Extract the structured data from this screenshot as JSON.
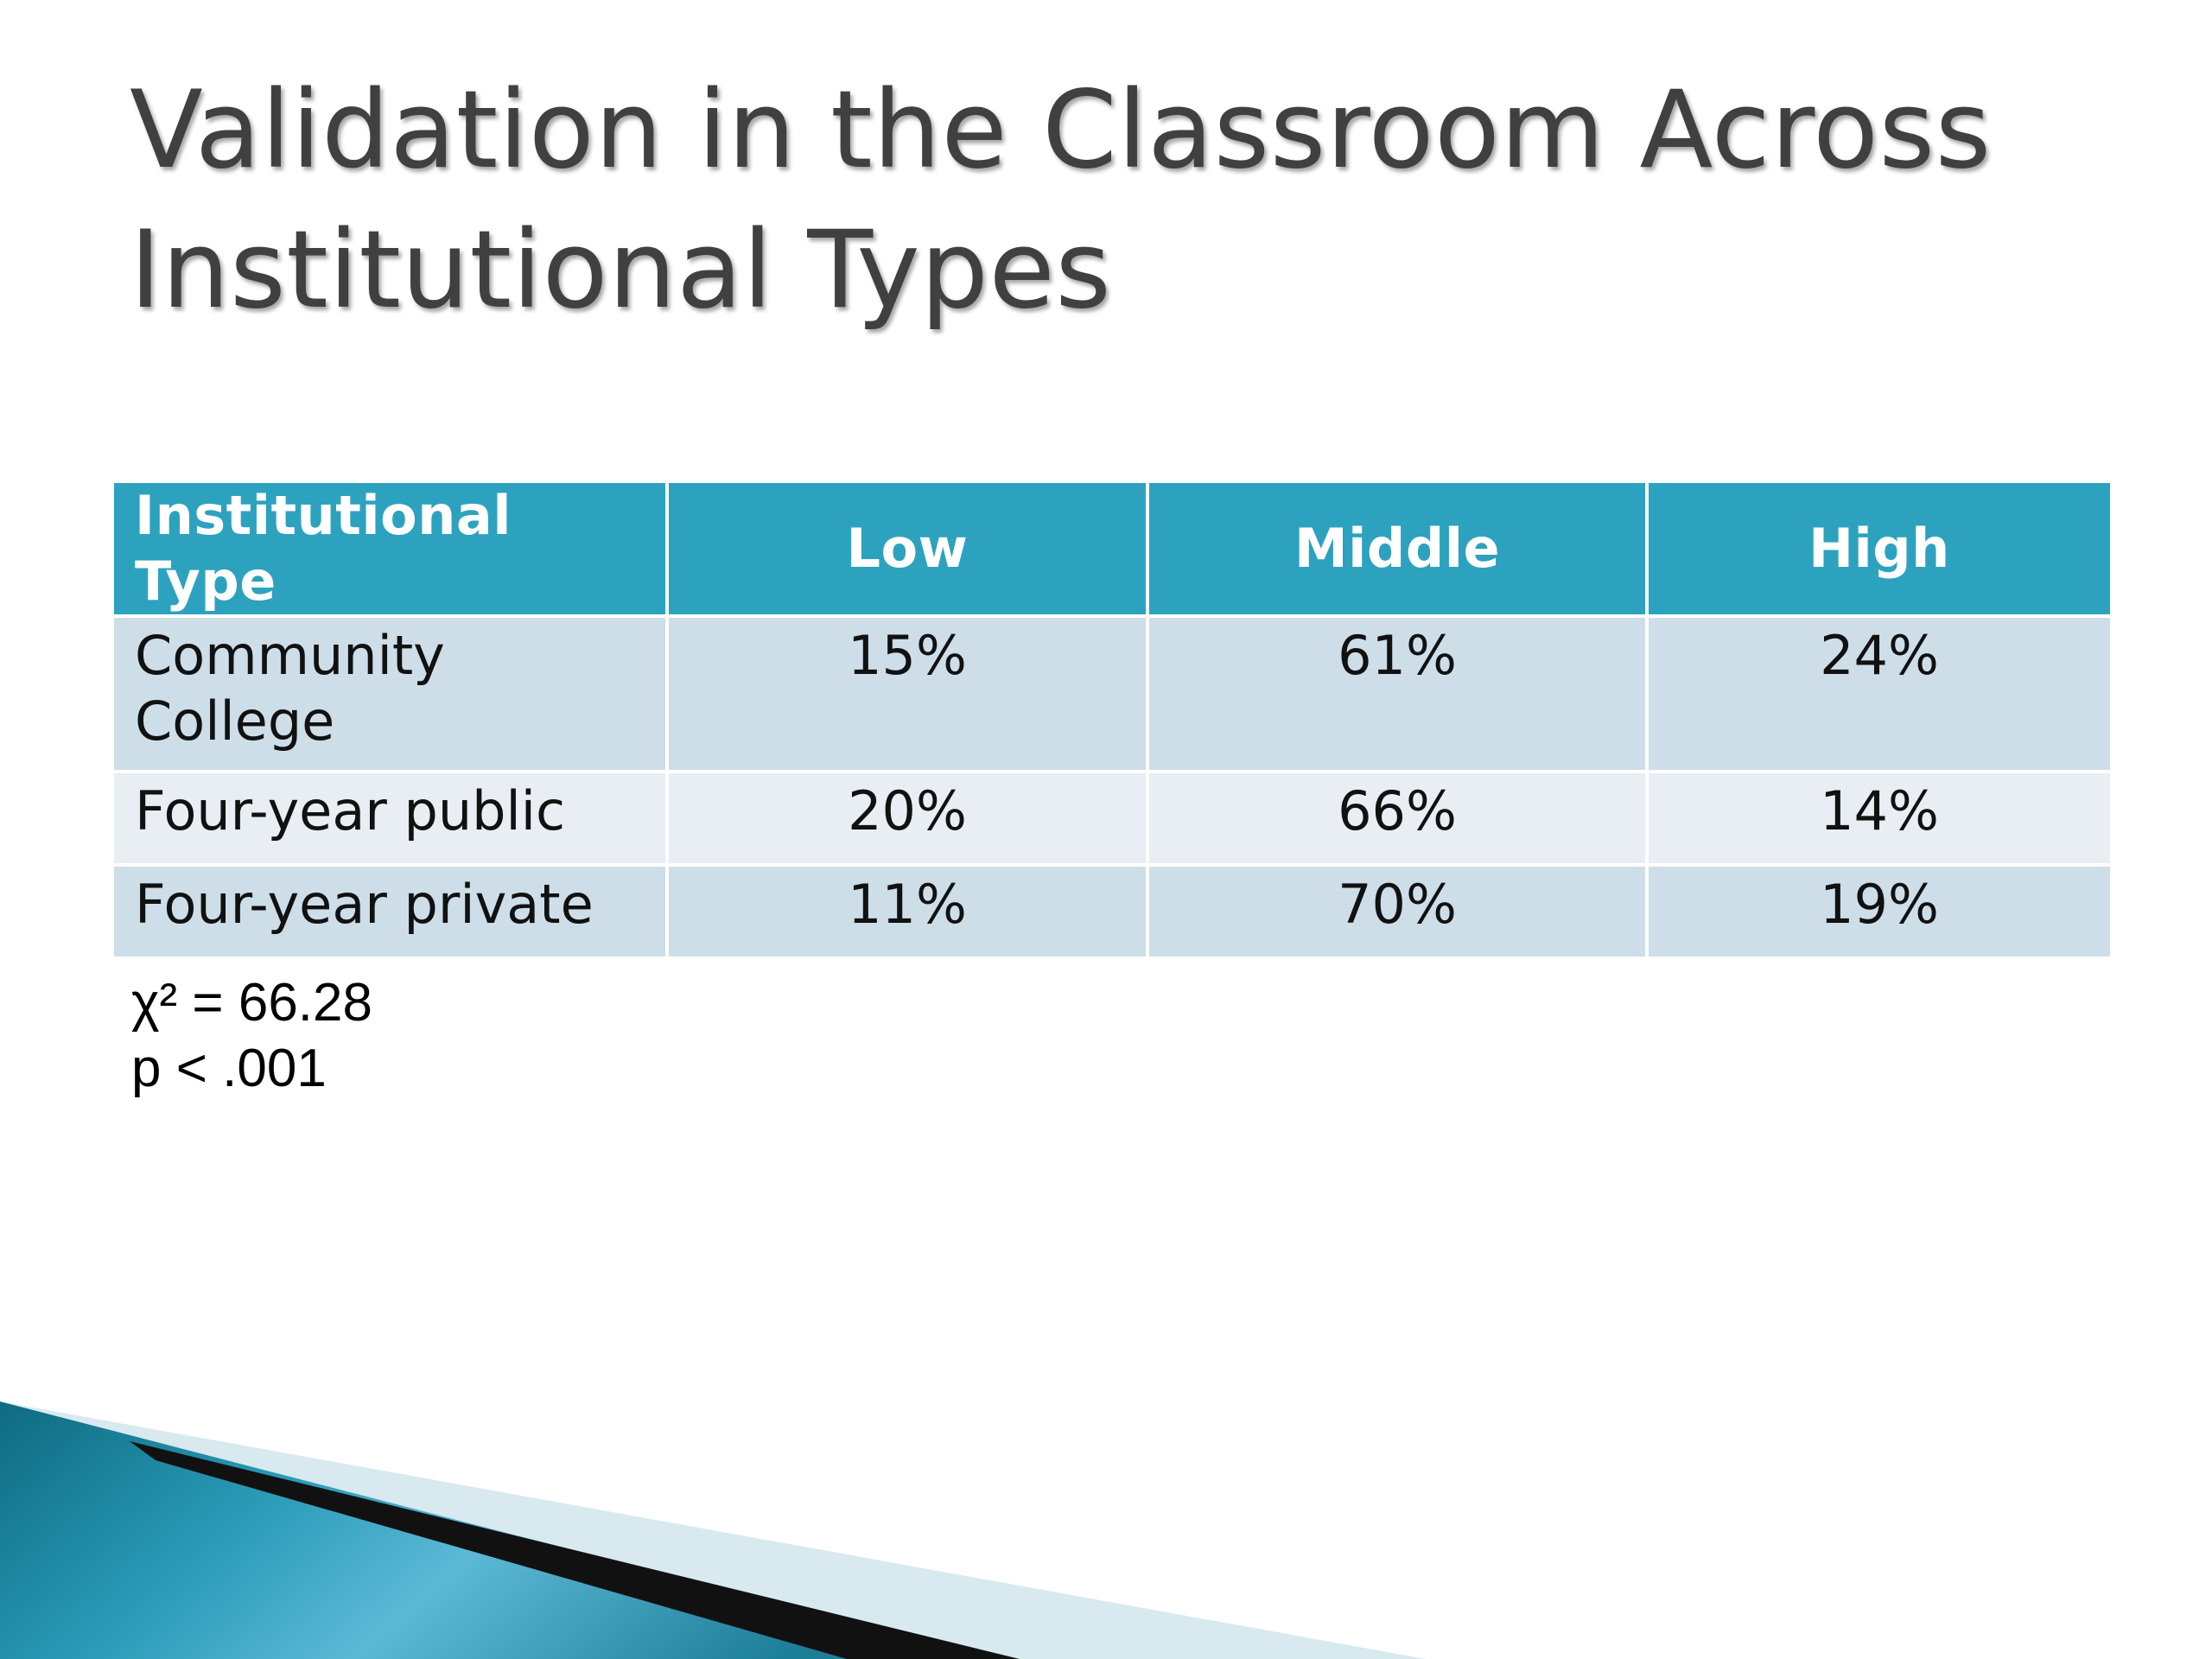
{
  "slide": {
    "title": "Validation in the Classroom Across Institutional Types"
  },
  "table": {
    "headers": [
      "Institutional Type",
      "Low",
      "Middle",
      "High"
    ],
    "rows": [
      [
        "Community College",
        "15%",
        "61%",
        "24%"
      ],
      [
        "Four-year public",
        "20%",
        "66%",
        "14%"
      ],
      [
        "Four-year private",
        "11%",
        "70%",
        "19%"
      ]
    ]
  },
  "stats": {
    "chi_square": "χ² = 66.28",
    "p_value": "p < .001"
  },
  "colors": {
    "header_bg": "#2da2bf",
    "row_odd_bg": "#cddee8",
    "row_even_bg": "#e8eef3",
    "title_text": "#404040",
    "accent_teal": "#1b7d96"
  }
}
